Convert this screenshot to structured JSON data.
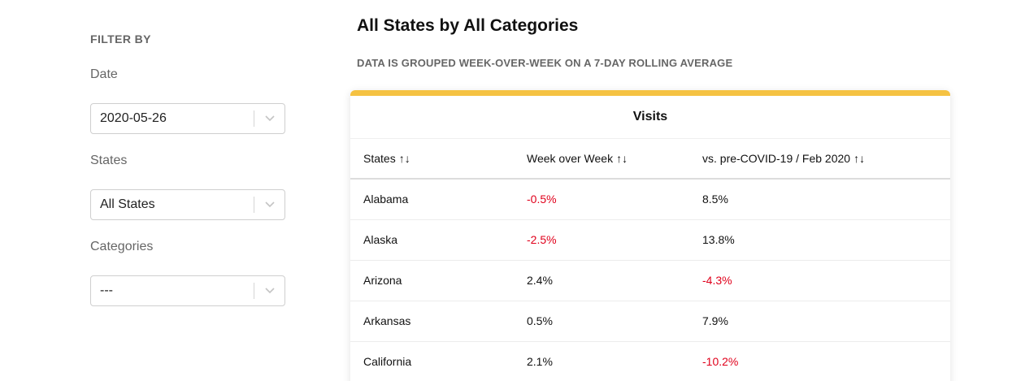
{
  "sidebar": {
    "heading": "FILTER BY",
    "date": {
      "label": "Date",
      "value": "2020-05-26"
    },
    "states": {
      "label": "States",
      "value": "All States"
    },
    "categories": {
      "label": "Categories",
      "value": "---"
    }
  },
  "main": {
    "title": "All States by All Categories",
    "subtitle": "DATA IS GROUPED WEEK-OVER-WEEK ON A 7-DAY ROLLING AVERAGE"
  },
  "table": {
    "title": "Visits",
    "accent_color": "#f5c242",
    "negative_color": "#e0001b",
    "sort_icon": "sort-updown-icon",
    "columns": [
      "States",
      "Week over Week",
      "vs. pre-COVID-19 / Feb 2020"
    ],
    "rows": [
      [
        "Alabama",
        "-0.5%",
        "8.5%"
      ],
      [
        "Alaska",
        "-2.5%",
        "13.8%"
      ],
      [
        "Arizona",
        "2.4%",
        "-4.3%"
      ],
      [
        "Arkansas",
        "0.5%",
        "7.9%"
      ],
      [
        "California",
        "2.1%",
        "-10.2%"
      ]
    ]
  }
}
